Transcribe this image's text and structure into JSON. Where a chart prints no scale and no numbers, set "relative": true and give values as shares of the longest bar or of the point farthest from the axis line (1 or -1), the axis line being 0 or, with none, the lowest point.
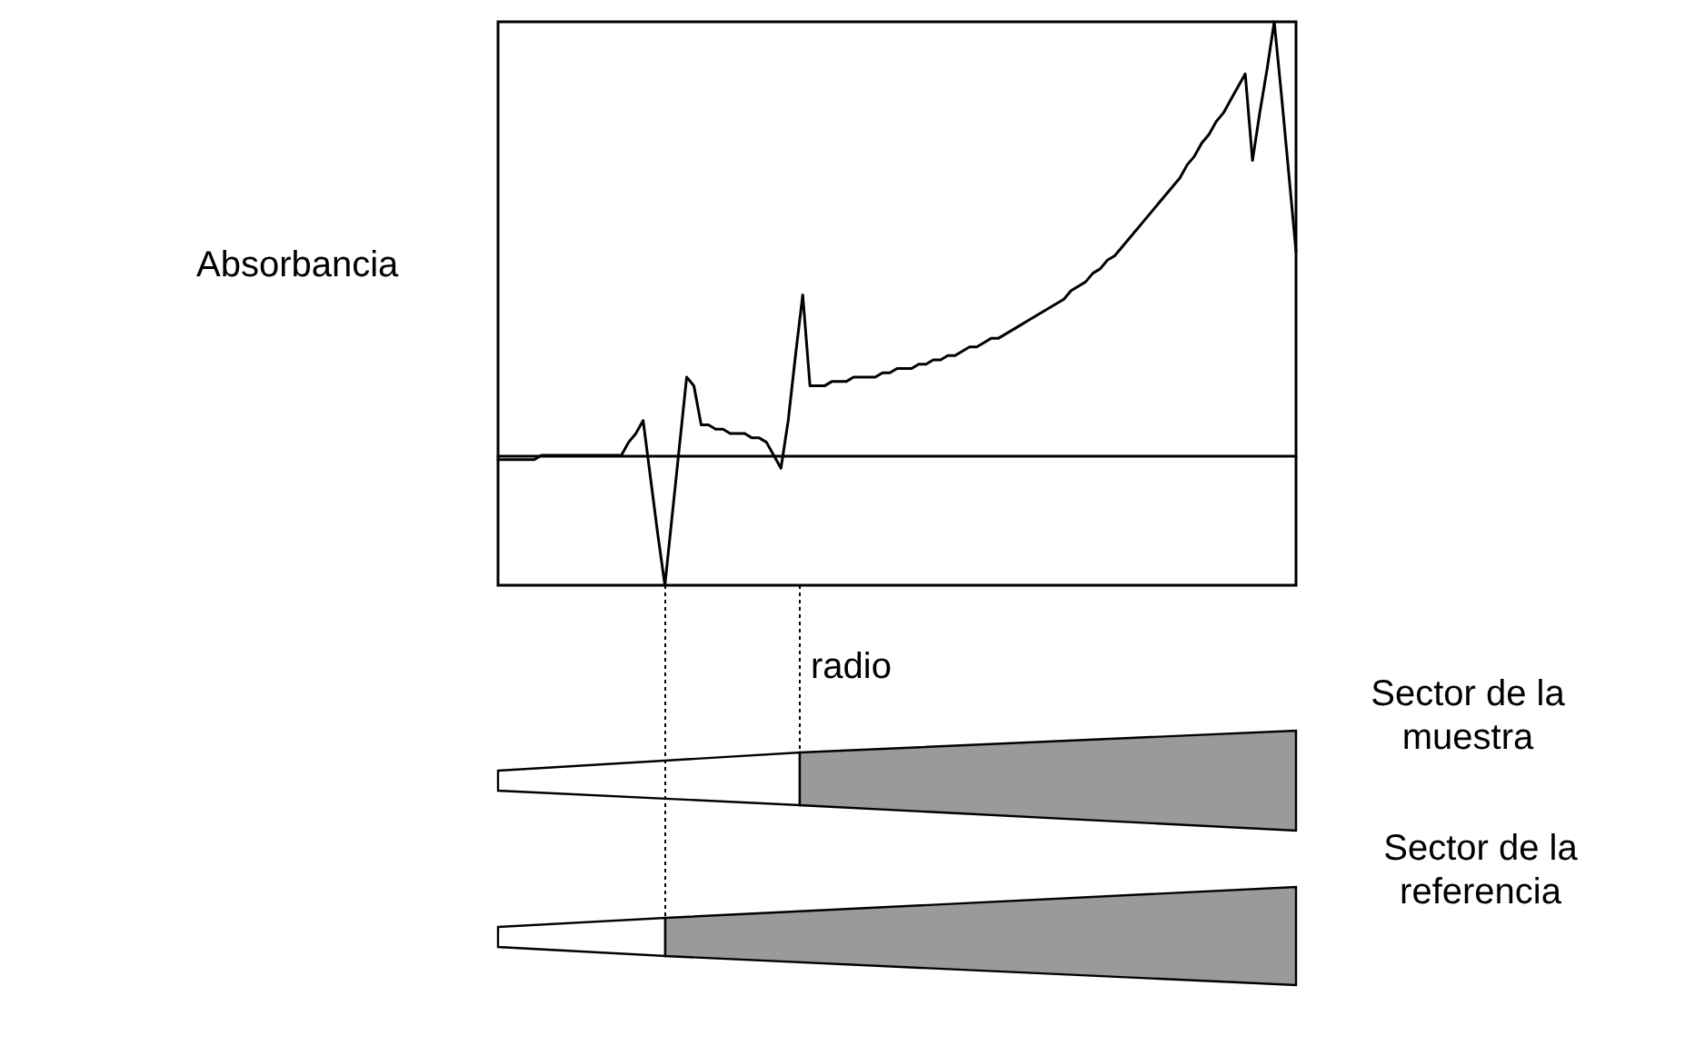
{
  "chart_data": {
    "type": "line",
    "relative": true,
    "ylabel": "Absorbancia",
    "xlabel": "radio",
    "line_style": "solid",
    "grid": false,
    "annotations": [
      "Sector de la muestra",
      "Sector de la referencia"
    ],
    "categories": [
      null,
      null,
      null,
      null,
      null,
      null,
      null,
      null,
      null,
      null,
      null,
      null,
      null,
      null,
      null,
      null,
      null,
      null,
      null,
      null,
      null,
      null,
      null,
      null,
      null,
      null,
      null,
      null,
      null,
      null,
      null,
      null,
      null,
      null,
      null,
      null,
      null,
      null,
      null,
      null,
      null,
      null,
      null,
      null,
      null,
      null,
      null,
      null,
      null,
      null,
      null,
      null,
      null,
      null,
      null,
      null,
      null,
      null,
      null,
      null,
      null,
      null,
      null,
      null,
      null,
      null,
      null,
      null,
      null,
      null,
      null,
      null,
      null,
      null,
      null,
      null,
      null,
      null,
      null,
      null,
      null,
      null,
      null,
      null,
      null,
      null,
      null,
      null,
      null,
      null,
      null,
      null,
      null,
      null,
      null,
      null,
      null,
      null,
      null,
      null,
      null,
      null,
      null,
      null,
      null,
      null,
      null,
      null,
      null,
      null,
      null
    ],
    "series": [
      {
        "color": "#000000",
        "values": [
          -0.01,
          -0.01,
          -0.01,
          -0.01,
          -0.01,
          -0.01,
          0.0,
          0.0,
          0.0,
          0.0,
          0.0,
          0.0,
          0.0,
          0.0,
          0.0,
          0.0,
          0.0,
          0.0,
          0.03,
          0.05,
          0.08,
          -0.05,
          -0.18,
          -0.3,
          -0.14,
          0.02,
          0.18,
          0.16,
          0.07,
          0.07,
          0.06,
          0.06,
          0.05,
          0.05,
          0.05,
          0.04,
          0.04,
          0.03,
          0.0,
          -0.03,
          0.08,
          0.23,
          0.37,
          0.16,
          0.16,
          0.16,
          0.17,
          0.17,
          0.17,
          0.18,
          0.18,
          0.18,
          0.18,
          0.19,
          0.19,
          0.2,
          0.2,
          0.2,
          0.21,
          0.21,
          0.22,
          0.22,
          0.23,
          0.23,
          0.24,
          0.25,
          0.25,
          0.26,
          0.27,
          0.27,
          0.28,
          0.29,
          0.3,
          0.31,
          0.32,
          0.33,
          0.34,
          0.35,
          0.36,
          0.38,
          0.39,
          0.4,
          0.42,
          0.43,
          0.45,
          0.46,
          0.48,
          0.5,
          0.52,
          0.54,
          0.56,
          0.58,
          0.6,
          0.62,
          0.64,
          0.67,
          0.69,
          0.72,
          0.74,
          0.77,
          0.79,
          0.82,
          0.85,
          0.88,
          0.68,
          0.79,
          0.89,
          1.0,
          0.83,
          0.65,
          0.47
        ]
      }
    ]
  }
}
